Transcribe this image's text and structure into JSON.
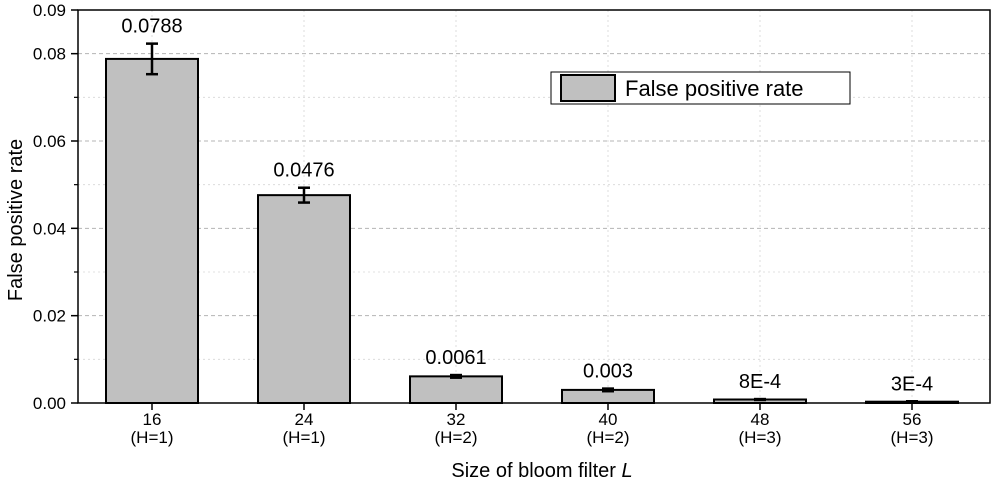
{
  "chart_data": {
    "type": "bar",
    "title": "",
    "xlabel": "Size of bloom filter",
    "xlabel_italic": "L",
    "ylabel": "False positive rate",
    "ylim": [
      0,
      0.09
    ],
    "yticks": [
      "0.00",
      "0.02",
      "0.04",
      "0.06",
      "0.08",
      "0.09"
    ],
    "grid": true,
    "legend_position": "top-right",
    "categories": [
      "16",
      "24",
      "32",
      "40",
      "48",
      "56"
    ],
    "category_sublabels": [
      "(H=1)",
      "(H=1)",
      "(H=2)",
      "(H=2)",
      "(H=3)",
      "(H=3)"
    ],
    "series": [
      {
        "name": "False positive rate",
        "values": [
          0.0788,
          0.0476,
          0.0061,
          0.003,
          0.0008,
          0.0003
        ],
        "errors": [
          0.0035,
          0.0017,
          0.0003,
          0.0003,
          0.0001,
          0.0001
        ],
        "data_labels": [
          "0.0788",
          "0.0476",
          "0.0061",
          "0.003",
          "8E-4",
          "3E-4"
        ],
        "color": "#c0c0c0"
      }
    ]
  }
}
